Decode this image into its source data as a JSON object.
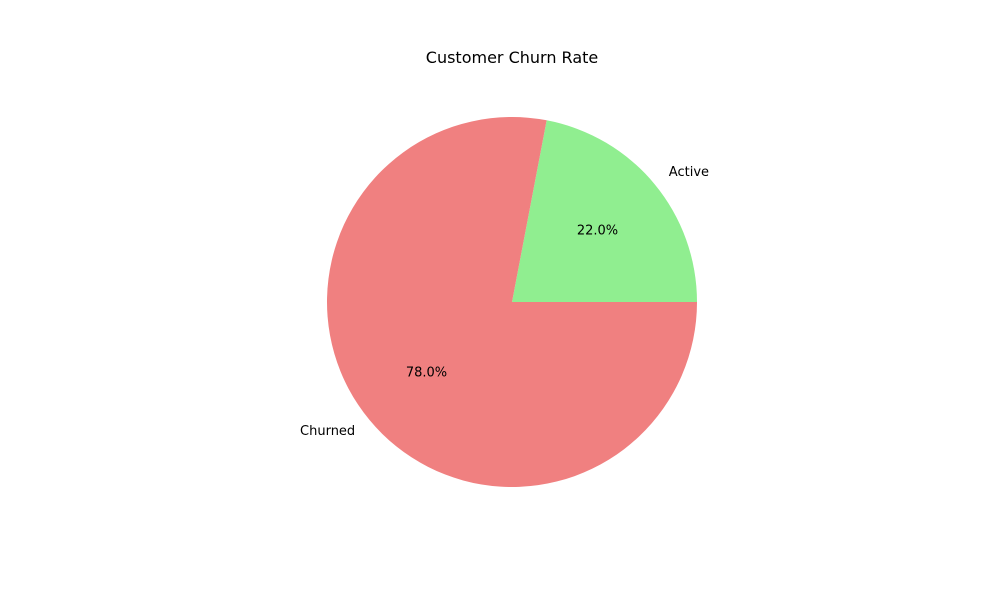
{
  "chart_data": {
    "type": "pie",
    "title": "Customer Churn Rate",
    "start_angle_deg": 0,
    "direction": "counterclockwise",
    "slices": [
      {
        "label": "Active",
        "value": 22.0,
        "pct_label": "22.0%",
        "color": "#90ee90"
      },
      {
        "label": "Churned",
        "value": 78.0,
        "pct_label": "78.0%",
        "color": "#f08080"
      }
    ]
  }
}
